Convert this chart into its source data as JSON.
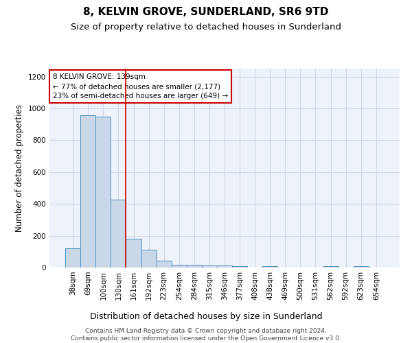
{
  "title": "8, KELVIN GROVE, SUNDERLAND, SR6 9TD",
  "subtitle": "Size of property relative to detached houses in Sunderland",
  "xlabel": "Distribution of detached houses by size in Sunderland",
  "ylabel": "Number of detached properties",
  "categories": [
    "38sqm",
    "69sqm",
    "100sqm",
    "130sqm",
    "161sqm",
    "192sqm",
    "223sqm",
    "254sqm",
    "284sqm",
    "315sqm",
    "346sqm",
    "377sqm",
    "408sqm",
    "438sqm",
    "469sqm",
    "500sqm",
    "531sqm",
    "562sqm",
    "592sqm",
    "623sqm",
    "654sqm"
  ],
  "values": [
    120,
    955,
    948,
    425,
    183,
    112,
    42,
    17,
    16,
    14,
    13,
    10,
    0,
    10,
    0,
    0,
    0,
    10,
    0,
    10,
    0
  ],
  "bar_color": "#c8d8e8",
  "bar_edge_color": "#5090c0",
  "grid_color": "#d0d8e8",
  "background_color": "#eef2fb",
  "red_line_x": 3.5,
  "annotation_text": "8 KELVIN GROVE: 139sqm\n← 77% of detached houses are smaller (2,177)\n23% of semi-detached houses are larger (649) →",
  "annotation_box_color": "#ffffff",
  "annotation_box_edge": "#cc0000",
  "annotation_text_color": "#000000",
  "ylim": [
    0,
    1250
  ],
  "yticks": [
    0,
    200,
    400,
    600,
    800,
    1000,
    1200
  ],
  "footer": "Contains HM Land Registry data © Crown copyright and database right 2024.\nContains public sector information licensed under the Open Government Licence v3.0.",
  "title_fontsize": 11,
  "subtitle_fontsize": 9.5,
  "xlabel_fontsize": 9,
  "ylabel_fontsize": 8.5,
  "tick_fontsize": 7.5,
  "footer_fontsize": 6.5
}
